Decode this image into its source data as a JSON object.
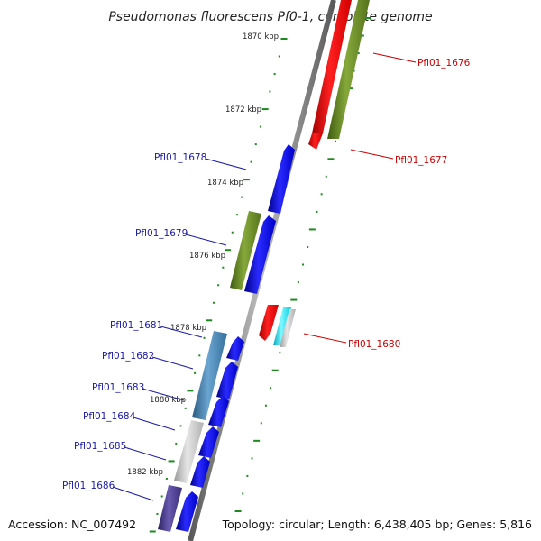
{
  "title": "Pseudomonas fluorescens Pf0-1, complete genome",
  "footer": {
    "accession": "Accession: NC_007492",
    "summary": "Topology: circular; Length: 6,438,405 bp; Genes: 5,816"
  },
  "scale_ticks": [
    "1870 kbp",
    "1872 kbp",
    "1874 kbp",
    "1876 kbp",
    "1878 kbp",
    "1880 kbp",
    "1882 kbp"
  ],
  "genes": [
    {
      "label": "Pfl01_1676",
      "strand": "reverse",
      "color": "#ff0000"
    },
    {
      "label": "Pfl01_1677",
      "strand": "reverse",
      "color": "#6b8e23"
    },
    {
      "label": "Pfl01_1678",
      "strand": "forward",
      "color": "#0000ff"
    },
    {
      "label": "Pfl01_1679",
      "strand": "forward",
      "color": "#0000ff"
    },
    {
      "label": "Pfl01_1680",
      "strand": "reverse",
      "color": "#ff0000"
    },
    {
      "label": "Pfl01_1681",
      "strand": "forward",
      "color": "#0000ff"
    },
    {
      "label": "Pfl01_1682",
      "strand": "forward",
      "color": "#0000ff"
    },
    {
      "label": "Pfl01_1683",
      "strand": "forward",
      "color": "#0000ff"
    },
    {
      "label": "Pfl01_1684",
      "strand": "forward",
      "color": "#0000ff"
    },
    {
      "label": "Pfl01_1685",
      "strand": "forward",
      "color": "#0000ff"
    },
    {
      "label": "Pfl01_1686",
      "strand": "forward",
      "color": "#0000ff"
    }
  ],
  "colors": {
    "backbone": "#8a8a8a",
    "forward_cds": "#0000ff",
    "reverse_cds": "#ff0000",
    "olive_feature": "#6b8e23",
    "steel_feature": "#4682b4",
    "cyan_feature": "#00e5ff",
    "gray_feature": "#c0c0c0",
    "purple_feature": "#4b3b8f",
    "tick_dots": "#1e8a1e"
  }
}
